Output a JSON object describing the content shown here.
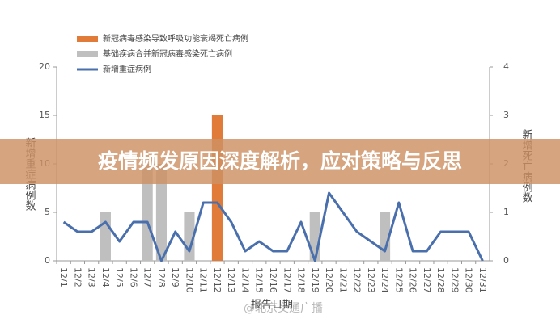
{
  "chart_data": {
    "type": "combo",
    "title": "疫情频发原因深度解析，应对策略与反思",
    "x_label": "报告日期",
    "y_label": "新增重症病例数",
    "y2_label": "新增死亡病例数",
    "watermark": "@北京交通广播",
    "legend": "top-left",
    "categories": [
      "12/1",
      "12/2",
      "12/3",
      "12/4",
      "12/5",
      "12/6",
      "12/7",
      "12/8",
      "12/9",
      "12/10",
      "12/11",
      "12/12",
      "12/13",
      "12/14",
      "12/15",
      "12/16",
      "12/17",
      "12/18",
      "12/19",
      "12/20",
      "12/21",
      "12/22",
      "12/23",
      "12/24",
      "12/25",
      "12/26",
      "12/27",
      "12/28",
      "12/29",
      "12/30",
      "12/31"
    ],
    "series": [
      {
        "name": "新冠病毒感染导致呼吸功能衰竭死亡病例",
        "type": "bar",
        "axis": "y2",
        "color": "#e07b39",
        "values": [
          0,
          0,
          0,
          0,
          0,
          0,
          0,
          0,
          0,
          0,
          0,
          3,
          0,
          0,
          0,
          0,
          0,
          0,
          0,
          0,
          0,
          0,
          0,
          0,
          0,
          0,
          0,
          0,
          0,
          0,
          0
        ]
      },
      {
        "name": "基础疾病合并新冠病毒感染死亡病例",
        "type": "bar",
        "axis": "y2",
        "color": "#bfbfbf",
        "values": [
          0,
          0,
          0,
          1,
          0,
          0,
          2,
          2,
          0,
          1,
          0,
          3,
          0,
          0,
          0,
          0,
          0,
          0,
          1,
          0,
          0,
          0,
          0,
          1,
          0,
          0,
          0,
          0,
          0,
          0,
          0
        ]
      },
      {
        "name": "新增重症病例",
        "type": "line",
        "axis": "y",
        "color": "#4a6fad",
        "values": [
          4,
          3,
          3,
          4,
          2,
          4,
          4,
          0,
          3,
          1,
          6,
          6,
          4,
          1,
          2,
          1,
          1,
          4,
          0,
          7,
          5,
          3,
          2,
          1,
          6,
          1,
          1,
          3,
          3,
          3,
          0
        ]
      }
    ],
    "ylim": [
      0,
      20
    ],
    "yticks": [
      0,
      5,
      10,
      15,
      20
    ],
    "y2lim": [
      0,
      4
    ],
    "y2ticks": [
      0,
      1,
      2,
      3,
      4
    ]
  }
}
